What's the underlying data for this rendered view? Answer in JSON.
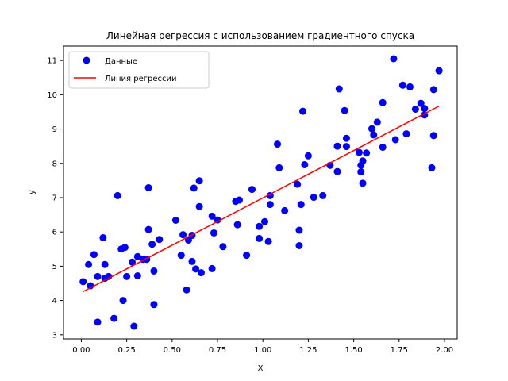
{
  "chart_data": {
    "type": "scatter",
    "title": "Линейная регрессия с использованием градиентного спуска",
    "xlabel": "X",
    "ylabel": "y",
    "xlim": [
      -0.098,
      2.07
    ],
    "ylim": [
      2.88,
      11.42
    ],
    "x_ticks": [
      "0.00",
      "0.25",
      "0.50",
      "0.75",
      "1.00",
      "1.25",
      "1.50",
      "1.75",
      "2.00"
    ],
    "x_tick_values": [
      0,
      0.25,
      0.5,
      0.75,
      1.0,
      1.25,
      1.5,
      1.75,
      2.0
    ],
    "y_ticks": [
      "3",
      "4",
      "5",
      "6",
      "7",
      "8",
      "9",
      "10",
      "11"
    ],
    "y_tick_values": [
      3,
      4,
      5,
      6,
      7,
      8,
      9,
      10,
      11
    ],
    "grid": false,
    "legend_position": "top-left",
    "series": [
      {
        "name": "Данные",
        "kind": "scatter",
        "color": "#0000ff",
        "points": [
          [
            0.01,
            4.55
          ],
          [
            0.04,
            5.05
          ],
          [
            0.05,
            4.43
          ],
          [
            0.07,
            5.34
          ],
          [
            0.09,
            3.37
          ],
          [
            0.09,
            4.7
          ],
          [
            0.12,
            5.83
          ],
          [
            0.13,
            5.05
          ],
          [
            0.13,
            4.65
          ],
          [
            0.15,
            4.7
          ],
          [
            0.18,
            3.48
          ],
          [
            0.2,
            7.06
          ],
          [
            0.22,
            5.5
          ],
          [
            0.23,
            4.0
          ],
          [
            0.24,
            5.55
          ],
          [
            0.25,
            4.7
          ],
          [
            0.28,
            5.12
          ],
          [
            0.29,
            3.25
          ],
          [
            0.31,
            4.72
          ],
          [
            0.31,
            5.28
          ],
          [
            0.34,
            5.2
          ],
          [
            0.36,
            5.2
          ],
          [
            0.37,
            6.07
          ],
          [
            0.37,
            7.29
          ],
          [
            0.39,
            5.64
          ],
          [
            0.4,
            3.88
          ],
          [
            0.4,
            4.86
          ],
          [
            0.43,
            5.78
          ],
          [
            0.52,
            6.34
          ],
          [
            0.55,
            5.32
          ],
          [
            0.56,
            5.92
          ],
          [
            0.58,
            4.31
          ],
          [
            0.59,
            5.76
          ],
          [
            0.61,
            5.14
          ],
          [
            0.61,
            5.9
          ],
          [
            0.62,
            7.28
          ],
          [
            0.63,
            4.92
          ],
          [
            0.65,
            6.74
          ],
          [
            0.65,
            7.49
          ],
          [
            0.66,
            4.81
          ],
          [
            0.72,
            4.93
          ],
          [
            0.72,
            6.46
          ],
          [
            0.73,
            5.97
          ],
          [
            0.75,
            6.35
          ],
          [
            0.78,
            5.57
          ],
          [
            0.85,
            6.89
          ],
          [
            0.86,
            6.21
          ],
          [
            0.87,
            6.93
          ],
          [
            0.91,
            5.32
          ],
          [
            0.94,
            7.24
          ],
          [
            0.98,
            6.16
          ],
          [
            0.98,
            5.81
          ],
          [
            1.01,
            6.3
          ],
          [
            1.03,
            5.72
          ],
          [
            1.04,
            6.8
          ],
          [
            1.04,
            7.06
          ],
          [
            1.08,
            8.56
          ],
          [
            1.09,
            7.87
          ],
          [
            1.12,
            6.62
          ],
          [
            1.19,
            7.39
          ],
          [
            1.2,
            6.05
          ],
          [
            1.2,
            5.6
          ],
          [
            1.21,
            6.8
          ],
          [
            1.22,
            9.52
          ],
          [
            1.23,
            7.96
          ],
          [
            1.25,
            8.22
          ],
          [
            1.28,
            7.01
          ],
          [
            1.33,
            7.06
          ],
          [
            1.37,
            7.94
          ],
          [
            1.41,
            8.5
          ],
          [
            1.41,
            7.76
          ],
          [
            1.42,
            10.17
          ],
          [
            1.45,
            9.54
          ],
          [
            1.46,
            8.73
          ],
          [
            1.46,
            8.49
          ],
          [
            1.53,
            8.32
          ],
          [
            1.54,
            7.94
          ],
          [
            1.54,
            7.75
          ],
          [
            1.55,
            8.07
          ],
          [
            1.55,
            7.42
          ],
          [
            1.57,
            8.3
          ],
          [
            1.6,
            9.01
          ],
          [
            1.61,
            8.83
          ],
          [
            1.63,
            9.2
          ],
          [
            1.66,
            9.77
          ],
          [
            1.66,
            8.47
          ],
          [
            1.72,
            11.05
          ],
          [
            1.73,
            8.69
          ],
          [
            1.77,
            10.28
          ],
          [
            1.79,
            8.86
          ],
          [
            1.81,
            10.23
          ],
          [
            1.84,
            9.58
          ],
          [
            1.87,
            9.75
          ],
          [
            1.89,
            9.6
          ],
          [
            1.89,
            9.41
          ],
          [
            1.93,
            7.87
          ],
          [
            1.94,
            10.15
          ],
          [
            1.94,
            8.81
          ],
          [
            1.97,
            10.7
          ]
        ]
      },
      {
        "name": "Линия регрессии",
        "kind": "line",
        "color": "#ff0000",
        "points": [
          [
            0.01,
            4.26
          ],
          [
            1.97,
            9.67
          ]
        ]
      }
    ]
  }
}
